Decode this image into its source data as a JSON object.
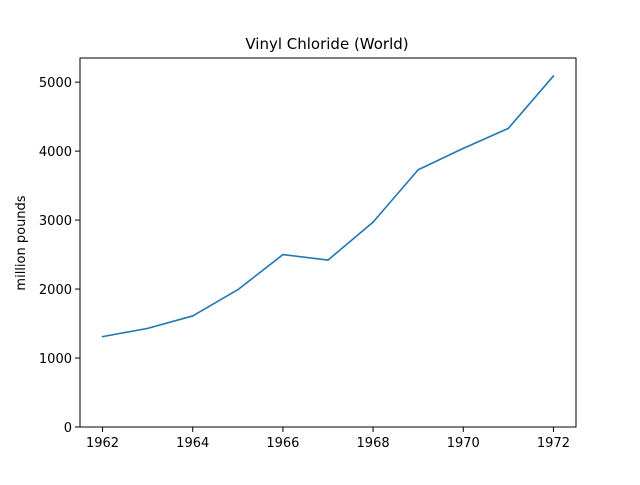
{
  "chart_data": {
    "type": "line",
    "title": "Vinyl Chloride (World)",
    "xlabel": "",
    "ylabel": "million pounds",
    "x": [
      1962,
      1963,
      1964,
      1965,
      1966,
      1967,
      1968,
      1969,
      1970,
      1971,
      1972
    ],
    "series": [
      {
        "values": [
          1310,
          1430,
          1610,
          1990,
          2500,
          2420,
          2970,
          3730,
          4040,
          4330,
          5090
        ],
        "color": "#1f77b4"
      }
    ],
    "xlim": [
      1961.5,
      1972.5
    ],
    "ylim": [
      0,
      5350
    ],
    "xticks": [
      "1962",
      "1964",
      "1966",
      "1968",
      "1970",
      "1972"
    ],
    "yticks": [
      "0",
      "1000",
      "2000",
      "3000",
      "4000",
      "5000"
    ],
    "grid": false,
    "legend": "none"
  }
}
